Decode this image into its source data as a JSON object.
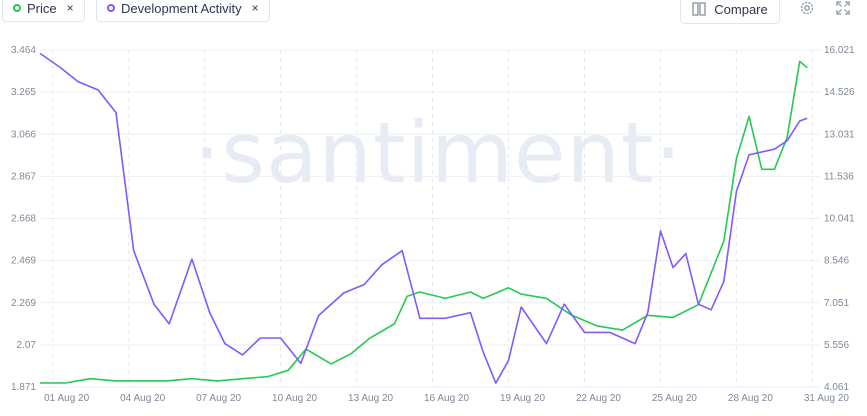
{
  "chips": [
    {
      "label": "Price",
      "color": "#26c953",
      "close": "×"
    },
    {
      "label": "Development Activity",
      "color": "#8358ff",
      "close": "×"
    }
  ],
  "compare": {
    "label": "Compare"
  },
  "watermark": "·santiment·",
  "chart_data": {
    "type": "line",
    "x_labels": [
      "01 Aug 20",
      "04 Aug 20",
      "07 Aug 20",
      "10 Aug 20",
      "13 Aug 20",
      "16 Aug 20",
      "19 Aug 20",
      "22 Aug 20",
      "25 Aug 20",
      "28 Aug 20",
      "31 Aug 20"
    ],
    "x_range": [
      0.5,
      31.3
    ],
    "grid": true,
    "left_axis": {
      "ticks": [
        "3.464",
        "3.265",
        "3.066",
        "2.867",
        "2.668",
        "2.469",
        "2.269",
        "2.07",
        "1.871"
      ],
      "min": 1.871,
      "max": 3.464
    },
    "right_axis": {
      "ticks": [
        "16.021",
        "14.526",
        "13.031",
        "11.536",
        "10.041",
        "8.546",
        "7.051",
        "5.556",
        "4.061"
      ],
      "min": 4.061,
      "max": 16.021
    },
    "series": [
      {
        "name": "Price",
        "axis": "left",
        "color": "#26c953",
        "points": [
          [
            0.5,
            1.89
          ],
          [
            1.5,
            1.89
          ],
          [
            2.5,
            1.91
          ],
          [
            3.5,
            1.9
          ],
          [
            4.5,
            1.9
          ],
          [
            5.5,
            1.9
          ],
          [
            6.5,
            1.91
          ],
          [
            7.5,
            1.9
          ],
          [
            8.5,
            1.91
          ],
          [
            9.5,
            1.92
          ],
          [
            10.3,
            1.95
          ],
          [
            11,
            2.05
          ],
          [
            12,
            1.98
          ],
          [
            12.8,
            2.03
          ],
          [
            13.5,
            2.1
          ],
          [
            14.5,
            2.17
          ],
          [
            15,
            2.3
          ],
          [
            15.5,
            2.32
          ],
          [
            16.5,
            2.29
          ],
          [
            17.5,
            2.32
          ],
          [
            18,
            2.29
          ],
          [
            19,
            2.34
          ],
          [
            19.5,
            2.31
          ],
          [
            20.5,
            2.29
          ],
          [
            21.5,
            2.21
          ],
          [
            22.5,
            2.16
          ],
          [
            23.5,
            2.14
          ],
          [
            24.5,
            2.21
          ],
          [
            25.5,
            2.2
          ],
          [
            26.5,
            2.26
          ],
          [
            27.5,
            2.56
          ],
          [
            28,
            2.95
          ],
          [
            28.5,
            3.15
          ],
          [
            29,
            2.9
          ],
          [
            29.5,
            2.9
          ],
          [
            30,
            3.05
          ],
          [
            30.5,
            3.41
          ],
          [
            30.8,
            3.38
          ]
        ]
      },
      {
        "name": "Development Activity",
        "axis": "right",
        "color": "#8358ff",
        "points": [
          [
            0.5,
            15.9
          ],
          [
            1.3,
            15.4
          ],
          [
            2,
            14.9
          ],
          [
            2.8,
            14.6
          ],
          [
            3.5,
            13.8
          ],
          [
            4.2,
            8.9
          ],
          [
            5,
            7.0
          ],
          [
            5.6,
            6.3
          ],
          [
            6.5,
            8.6
          ],
          [
            7.2,
            6.7
          ],
          [
            7.8,
            5.6
          ],
          [
            8.5,
            5.2
          ],
          [
            9.2,
            5.8
          ],
          [
            10,
            5.8
          ],
          [
            10.8,
            4.9
          ],
          [
            11.5,
            6.6
          ],
          [
            12.5,
            7.4
          ],
          [
            13.3,
            7.7
          ],
          [
            14,
            8.4
          ],
          [
            14.8,
            8.9
          ],
          [
            15.5,
            6.5
          ],
          [
            16.5,
            6.5
          ],
          [
            17.5,
            6.7
          ],
          [
            18,
            5.3
          ],
          [
            18.5,
            4.2
          ],
          [
            19,
            5.0
          ],
          [
            19.5,
            6.9
          ],
          [
            20.5,
            5.6
          ],
          [
            21.2,
            7.0
          ],
          [
            22,
            6.0
          ],
          [
            23,
            6.0
          ],
          [
            24,
            5.6
          ],
          [
            24.5,
            6.7
          ],
          [
            25,
            9.6
          ],
          [
            25.5,
            8.3
          ],
          [
            26,
            8.8
          ],
          [
            26.5,
            7.0
          ],
          [
            27,
            6.8
          ],
          [
            27.5,
            7.8
          ],
          [
            28,
            11.0
          ],
          [
            28.5,
            12.3
          ],
          [
            29.5,
            12.5
          ],
          [
            30,
            12.8
          ],
          [
            30.5,
            13.5
          ],
          [
            30.8,
            13.6
          ]
        ]
      }
    ]
  }
}
